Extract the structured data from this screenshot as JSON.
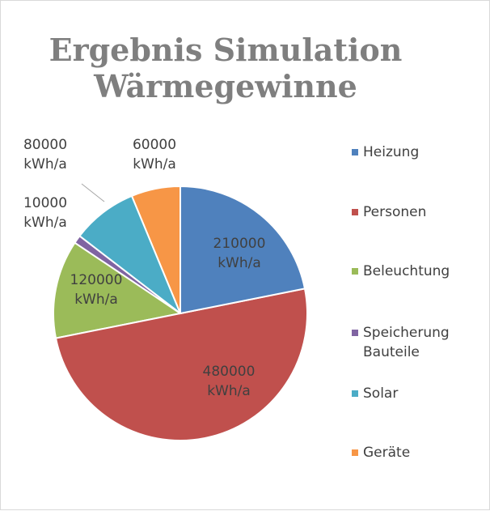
{
  "chart_data": {
    "type": "pie",
    "title": "Ergebnis Simulation Wärmegewinne",
    "categories": [
      "Heizung",
      "Personen",
      "Beleuchtung",
      "Speicherung Bauteile",
      "Solar",
      "Geräte"
    ],
    "values": [
      210000,
      480000,
      120000,
      10000,
      80000,
      60000
    ],
    "value_labels": [
      "210000 kWh/a",
      "480000 kWh/a",
      "120000 kWh/a",
      "10000 kWh/a",
      "80000 kWh/a",
      "60000 kWh/a"
    ],
    "colors": [
      "#4f81bd",
      "#c0504d",
      "#9bbb59",
      "#8064a2",
      "#4bacc6",
      "#f79646"
    ],
    "legend": "right"
  }
}
